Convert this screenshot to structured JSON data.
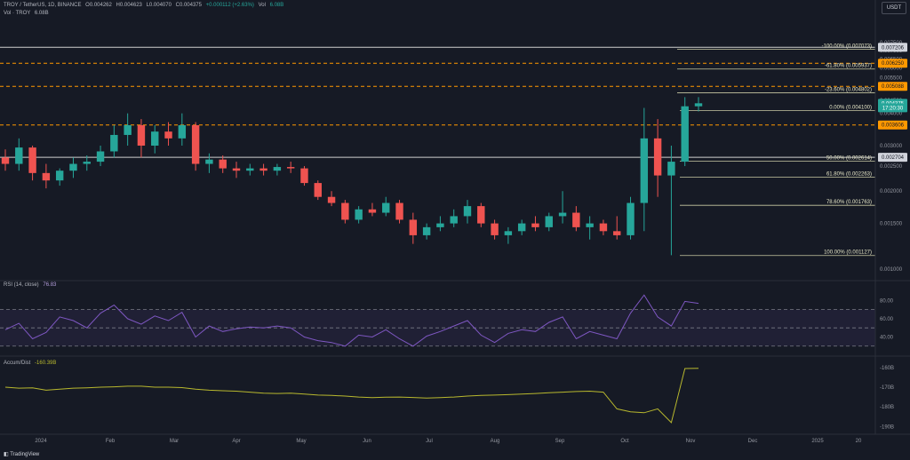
{
  "header": {
    "symbol": "TROY / TetherUS, 1D, BINANCE",
    "open": "O0.004262",
    "high": "H0.004623",
    "low": "L0.004070",
    "close": "C0.004375",
    "change": "+0.000112 (+2.63%)",
    "vol_label": "Vol",
    "vol_value": "6.08B",
    "vol_row_label": "Vol · TROY",
    "vol_row_value": "6.08B"
  },
  "currency_button": "USDT",
  "rsi_header": {
    "label": "RSI (14, close)",
    "value": "76.83"
  },
  "accum_header": {
    "label": "Accum/Dist",
    "value": "-160.39B"
  },
  "branding": {
    "logo_text": "TradingView"
  },
  "colors": {
    "background": "#161a25",
    "up": "#26a69a",
    "down": "#ef5350",
    "fib": "#c9c9a3",
    "resistance": "#ff9800",
    "rsi_line": "#7e57c2",
    "accum_line": "#b8b82e"
  },
  "chart_data": [
    {
      "type": "candlestick",
      "title": "TROY / TetherUS, 1D, BINANCE",
      "x_tick_labels": [
        "2024",
        "Feb",
        "Mar",
        "Apr",
        "May",
        "Jun",
        "Jul",
        "Aug",
        "Sep",
        "Oct",
        "Nov",
        "Dec",
        "2025",
        "20"
      ],
      "y_axis": {
        "scale": "log",
        "range": [
          0.00093,
          0.0088
        ],
        "tick_labels": [
          "0.007500",
          "0.007000",
          "0.006500",
          "0.006000",
          "0.005500",
          "0.004500",
          "0.004000",
          "0.003000",
          "0.002500",
          "0.002000",
          "0.001500",
          "0.001000"
        ]
      },
      "price_markers": [
        {
          "label": "0.007206",
          "style": "white"
        },
        {
          "label": "0.006250",
          "style": "orange"
        },
        {
          "label": "0.005088",
          "style": "orange"
        },
        {
          "label": "0.004375",
          "style": "green"
        },
        {
          "label": "17:20:30",
          "style": "green"
        },
        {
          "label": "0.003606",
          "style": "orange"
        },
        {
          "label": "0.002704",
          "style": "white"
        }
      ],
      "horizontal_levels": [
        {
          "price": 0.007206,
          "type": "resistance",
          "color": "#cfcfcf",
          "style": "solid"
        },
        {
          "price": 0.00625,
          "type": "resistance",
          "color": "#ff9800",
          "style": "dashed"
        },
        {
          "price": 0.005088,
          "type": "resistance",
          "color": "#ff9800",
          "style": "dashed"
        },
        {
          "price": 0.003606,
          "type": "resistance",
          "color": "#ff9800",
          "style": "dashed"
        },
        {
          "price": 0.002704,
          "type": "support",
          "color": "#cfcfcf",
          "style": "solid"
        }
      ],
      "fib_upper": [
        {
          "label": "-100.00% (0.007073)",
          "price": 0.007073
        },
        {
          "label": "-61.80% (0.005937)",
          "price": 0.005937
        },
        {
          "label": "-23.60% (0.004802)",
          "price": 0.004802
        }
      ],
      "fib_lower": [
        {
          "label": "0.00% (0.004100)",
          "price": 0.0041
        },
        {
          "label": "50.00% (0.002614)",
          "price": 0.002614
        },
        {
          "label": "61.80% (0.002263)",
          "price": 0.002263
        },
        {
          "label": "78.60% (0.001763)",
          "price": 0.001763
        },
        {
          "label": "100.00% (0.001127)",
          "price": 0.001127
        }
      ],
      "ohlc_weekly_approx": [
        {
          "o": 0.0027,
          "h": 0.0029,
          "l": 0.0024,
          "c": 0.00255
        },
        {
          "o": 0.00255,
          "h": 0.0032,
          "l": 0.0024,
          "c": 0.00295
        },
        {
          "o": 0.00295,
          "h": 0.003,
          "l": 0.0022,
          "c": 0.00235
        },
        {
          "o": 0.00235,
          "h": 0.00255,
          "l": 0.00205,
          "c": 0.0022
        },
        {
          "o": 0.0022,
          "h": 0.00245,
          "l": 0.0021,
          "c": 0.0024
        },
        {
          "o": 0.0024,
          "h": 0.0027,
          "l": 0.00225,
          "c": 0.00255
        },
        {
          "o": 0.00255,
          "h": 0.00275,
          "l": 0.0024,
          "c": 0.0026
        },
        {
          "o": 0.0026,
          "h": 0.003,
          "l": 0.0025,
          "c": 0.00285
        },
        {
          "o": 0.00285,
          "h": 0.0036,
          "l": 0.0027,
          "c": 0.0033
        },
        {
          "o": 0.0033,
          "h": 0.004,
          "l": 0.003,
          "c": 0.0036
        },
        {
          "o": 0.0036,
          "h": 0.0038,
          "l": 0.0027,
          "c": 0.003
        },
        {
          "o": 0.003,
          "h": 0.0036,
          "l": 0.0028,
          "c": 0.0034
        },
        {
          "o": 0.0034,
          "h": 0.0037,
          "l": 0.003,
          "c": 0.0032
        },
        {
          "o": 0.0032,
          "h": 0.004,
          "l": 0.003,
          "c": 0.0036
        },
        {
          "o": 0.0036,
          "h": 0.0037,
          "l": 0.0024,
          "c": 0.00255
        },
        {
          "o": 0.00255,
          "h": 0.0028,
          "l": 0.00235,
          "c": 0.00265
        },
        {
          "o": 0.00265,
          "h": 0.00275,
          "l": 0.00235,
          "c": 0.00245
        },
        {
          "o": 0.00245,
          "h": 0.0026,
          "l": 0.00225,
          "c": 0.0024
        },
        {
          "o": 0.0024,
          "h": 0.00255,
          "l": 0.0023,
          "c": 0.00245
        },
        {
          "o": 0.00245,
          "h": 0.00255,
          "l": 0.0023,
          "c": 0.0024
        },
        {
          "o": 0.0024,
          "h": 0.00255,
          "l": 0.0023,
          "c": 0.00248
        },
        {
          "o": 0.00248,
          "h": 0.0026,
          "l": 0.00235,
          "c": 0.00245
        },
        {
          "o": 0.00245,
          "h": 0.0025,
          "l": 0.0021,
          "c": 0.00215
        },
        {
          "o": 0.00215,
          "h": 0.0022,
          "l": 0.00185,
          "c": 0.0019
        },
        {
          "o": 0.0019,
          "h": 0.002,
          "l": 0.00175,
          "c": 0.0018
        },
        {
          "o": 0.0018,
          "h": 0.00185,
          "l": 0.0015,
          "c": 0.00155
        },
        {
          "o": 0.00155,
          "h": 0.00175,
          "l": 0.0015,
          "c": 0.0017
        },
        {
          "o": 0.0017,
          "h": 0.0018,
          "l": 0.0016,
          "c": 0.00165
        },
        {
          "o": 0.00165,
          "h": 0.0019,
          "l": 0.0016,
          "c": 0.0018
        },
        {
          "o": 0.0018,
          "h": 0.00185,
          "l": 0.0015,
          "c": 0.00155
        },
        {
          "o": 0.00155,
          "h": 0.00165,
          "l": 0.00125,
          "c": 0.00135
        },
        {
          "o": 0.00135,
          "h": 0.0015,
          "l": 0.0013,
          "c": 0.00145
        },
        {
          "o": 0.00145,
          "h": 0.0016,
          "l": 0.0014,
          "c": 0.0015
        },
        {
          "o": 0.0015,
          "h": 0.0017,
          "l": 0.00145,
          "c": 0.0016
        },
        {
          "o": 0.0016,
          "h": 0.00185,
          "l": 0.0015,
          "c": 0.00175
        },
        {
          "o": 0.00175,
          "h": 0.0018,
          "l": 0.00145,
          "c": 0.0015
        },
        {
          "o": 0.0015,
          "h": 0.00155,
          "l": 0.0013,
          "c": 0.00135
        },
        {
          "o": 0.00135,
          "h": 0.00145,
          "l": 0.00125,
          "c": 0.0014
        },
        {
          "o": 0.0014,
          "h": 0.00155,
          "l": 0.00135,
          "c": 0.0015
        },
        {
          "o": 0.0015,
          "h": 0.0016,
          "l": 0.0014,
          "c": 0.00145
        },
        {
          "o": 0.00145,
          "h": 0.00165,
          "l": 0.0014,
          "c": 0.0016
        },
        {
          "o": 0.0016,
          "h": 0.002,
          "l": 0.0015,
          "c": 0.00165
        },
        {
          "o": 0.00165,
          "h": 0.00175,
          "l": 0.0014,
          "c": 0.00145
        },
        {
          "o": 0.00145,
          "h": 0.0016,
          "l": 0.0013,
          "c": 0.0015
        },
        {
          "o": 0.0015,
          "h": 0.00155,
          "l": 0.00135,
          "c": 0.0014
        },
        {
          "o": 0.0014,
          "h": 0.0016,
          "l": 0.0013,
          "c": 0.00135
        },
        {
          "o": 0.00135,
          "h": 0.0019,
          "l": 0.0013,
          "c": 0.0018
        },
        {
          "o": 0.0018,
          "h": 0.0042,
          "l": 0.0014,
          "c": 0.0032
        },
        {
          "o": 0.0032,
          "h": 0.0038,
          "l": 0.0019,
          "c": 0.0023
        },
        {
          "o": 0.0023,
          "h": 0.003,
          "l": 0.00113,
          "c": 0.0026
        },
        {
          "o": 0.0026,
          "h": 0.00462,
          "l": 0.0025,
          "c": 0.00426
        },
        {
          "o": 0.00426,
          "h": 0.00462,
          "l": 0.00407,
          "c": 0.004375
        }
      ]
    },
    {
      "type": "line",
      "title": "RSI (14, close)",
      "y_tick_labels": [
        "80.00",
        "60.00",
        "40.00"
      ],
      "y_range": [
        22,
        92
      ],
      "bands": [
        70,
        50,
        30
      ],
      "values": [
        48,
        55,
        38,
        45,
        62,
        58,
        50,
        66,
        75,
        60,
        54,
        63,
        58,
        67,
        40,
        52,
        46,
        49,
        51,
        50,
        52,
        50,
        40,
        36,
        34,
        30,
        42,
        40,
        48,
        38,
        30,
        41,
        46,
        52,
        58,
        42,
        34,
        44,
        48,
        46,
        56,
        62,
        38,
        46,
        42,
        38,
        66,
        86,
        62,
        52,
        79,
        76.83
      ]
    },
    {
      "type": "line",
      "title": "Accum/Dist",
      "y_tick_labels": [
        "-160B",
        "-170B",
        "-180B",
        "-190B"
      ],
      "y_range": [
        -193,
        -156
      ],
      "values": [
        -170,
        -170.5,
        -170.3,
        -171.5,
        -171,
        -170.5,
        -170.3,
        -170,
        -169.8,
        -169.5,
        -169.5,
        -170,
        -170,
        -170.2,
        -171,
        -171.5,
        -171.8,
        -172,
        -172.5,
        -173,
        -173.2,
        -173,
        -173.5,
        -174,
        -174.2,
        -174.5,
        -175,
        -175.3,
        -175.1,
        -175,
        -175.2,
        -175.5,
        -175.3,
        -175,
        -174.5,
        -174.2,
        -174,
        -173.8,
        -173.5,
        -173.2,
        -172.8,
        -172.5,
        -172.2,
        -172,
        -172.5,
        -181,
        -182.5,
        -183,
        -181,
        -188,
        -160.5,
        -160.39
      ]
    }
  ]
}
